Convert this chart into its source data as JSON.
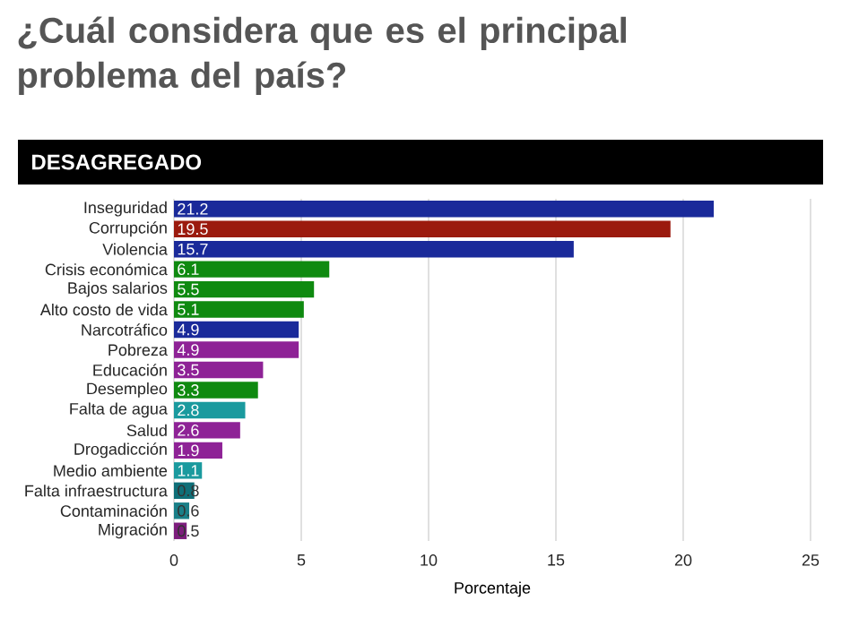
{
  "chart_data": {
    "type": "bar",
    "orientation": "horizontal",
    "title": "¿Cuál considera que es el principal problema del país?",
    "subtitle": "DESAGREGADO",
    "xlabel": "Porcentaje",
    "categories": [
      "Inseguridad",
      "Corrupción",
      "Violencia",
      "Crisis económica",
      "Bajos salarios",
      "Alto costo de vida",
      "Narcotráfico",
      "Pobreza",
      "Educación",
      "Desempleo",
      "Falta de agua",
      "Salud",
      "Drogadicción",
      "Medio ambiente",
      "Falta infraestructura",
      "Contaminación",
      "Migración"
    ],
    "values": [
      21.2,
      19.5,
      15.7,
      6.1,
      5.5,
      5.1,
      4.9,
      4.9,
      3.5,
      3.3,
      2.8,
      2.6,
      1.9,
      1.1,
      0.8,
      0.6,
      0.5
    ],
    "colors": [
      "#1a2a9a",
      "#9b1a0e",
      "#1a2a9a",
      "#0f8a10",
      "#0f8a10",
      "#0f8a10",
      "#1a2a9a",
      "#8e2296",
      "#8e2296",
      "#0f8a10",
      "#1a9a9e",
      "#8e2296",
      "#8e2296",
      "#1a9a9e",
      "#0f6f78",
      "#1a7f88",
      "#7d1d7d"
    ],
    "xlim": [
      0,
      25
    ],
    "xticks": [
      0,
      5,
      10,
      15,
      20,
      25
    ],
    "grid": "x",
    "data_labels": true
  }
}
